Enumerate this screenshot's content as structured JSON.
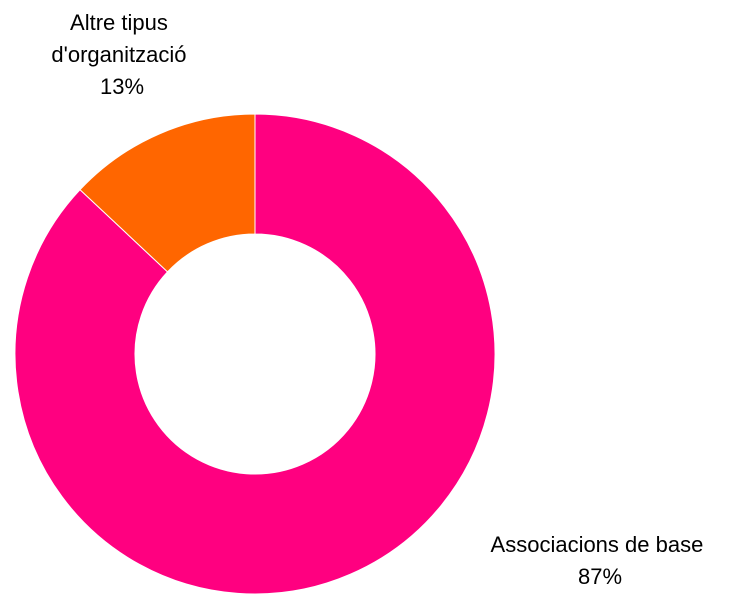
{
  "chart_data": {
    "type": "pie",
    "style": "donut",
    "title": "",
    "slices": [
      {
        "label": "Associacions de base",
        "value": 87,
        "value_label": "87%",
        "color": "#FF0080"
      },
      {
        "label": "Altre tipus d'organització",
        "label_lines": [
          "Altre tipus",
          "d'organització"
        ],
        "value": 13,
        "value_label": "13%",
        "color": "#FF6600"
      }
    ],
    "legend": "none"
  }
}
